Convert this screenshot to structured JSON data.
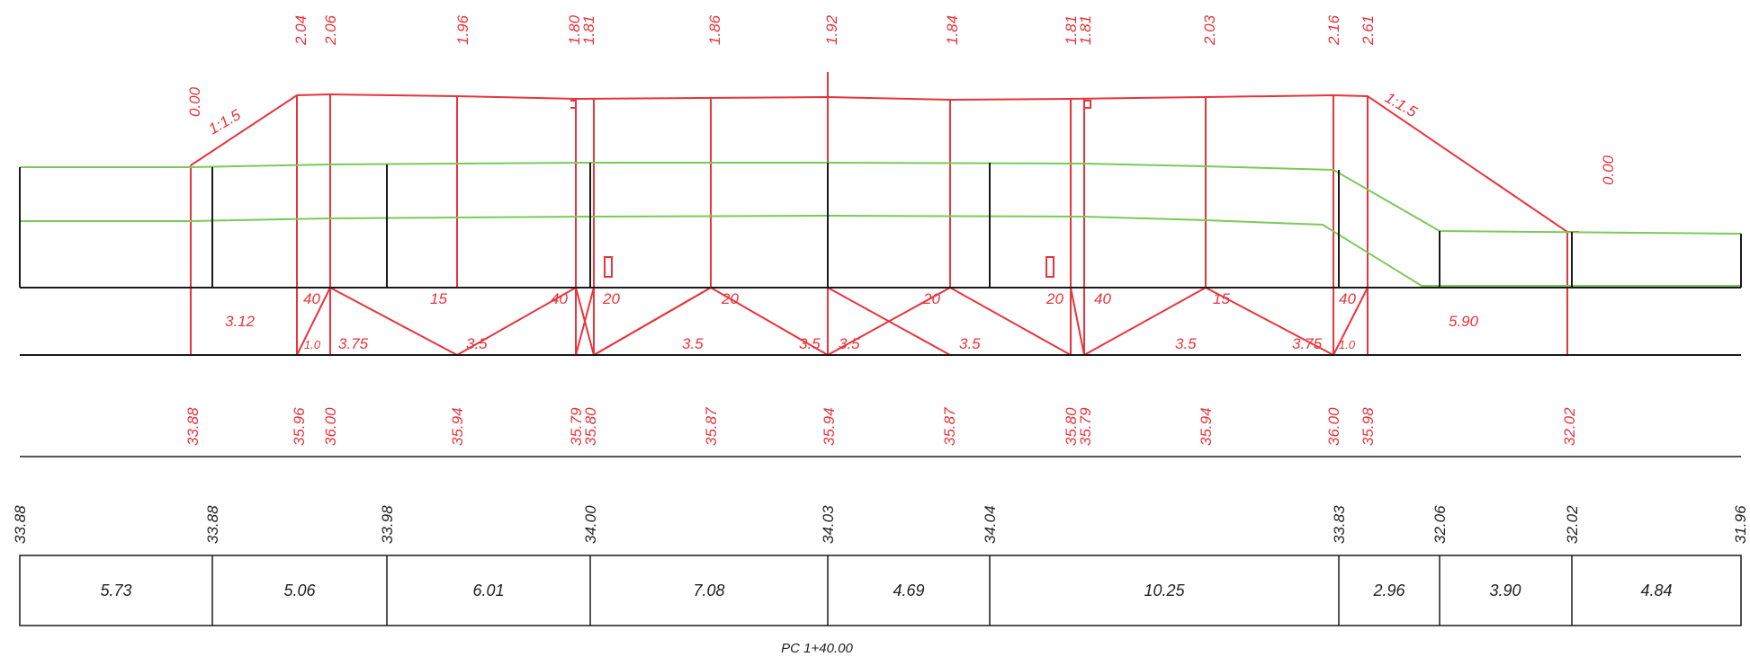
{
  "colors": {
    "design": "#e8343c",
    "existing": "#7cc95a",
    "ink": "#1a1a1a"
  },
  "station": "PC 1+40.00",
  "design_heights": [
    "2.04",
    "2.06",
    "1.96",
    "1.80",
    "1.81",
    "1.86",
    "1.92",
    "1.84",
    "1.81",
    "1.81",
    "2.03",
    "2.16",
    "2.61"
  ],
  "edge_heights": [
    "0.00",
    "0.00"
  ],
  "slopes": [
    "1:1.5",
    "1:1.5"
  ],
  "slope_row": [
    "40",
    "15",
    "40",
    "20",
    "20",
    "20",
    "20",
    "40",
    "15",
    "40"
  ],
  "width_row": [
    "3.12",
    "1.0",
    "3.75",
    "3.5",
    "3.5",
    "3.5",
    "3.5",
    "3.5",
    "3.5",
    "3.75",
    "1.0",
    "5.90"
  ],
  "design_elevations": [
    "33.88",
    "35.96",
    "36.00",
    "35.94",
    "35.79",
    "35.80",
    "35.87",
    "35.94",
    "35.87",
    "35.80",
    "35.79",
    "35.94",
    "36.00",
    "35.98",
    "32.02"
  ],
  "ground_elevations": [
    "33.88",
    "33.88",
    "33.98",
    "34.00",
    "34.03",
    "34.04",
    "33.83",
    "32.06",
    "32.02",
    "31.96"
  ],
  "distances": [
    "5.73",
    "5.06",
    "6.01",
    "7.08",
    "4.69",
    "10.25",
    "2.96",
    "3.90",
    "4.84"
  ]
}
